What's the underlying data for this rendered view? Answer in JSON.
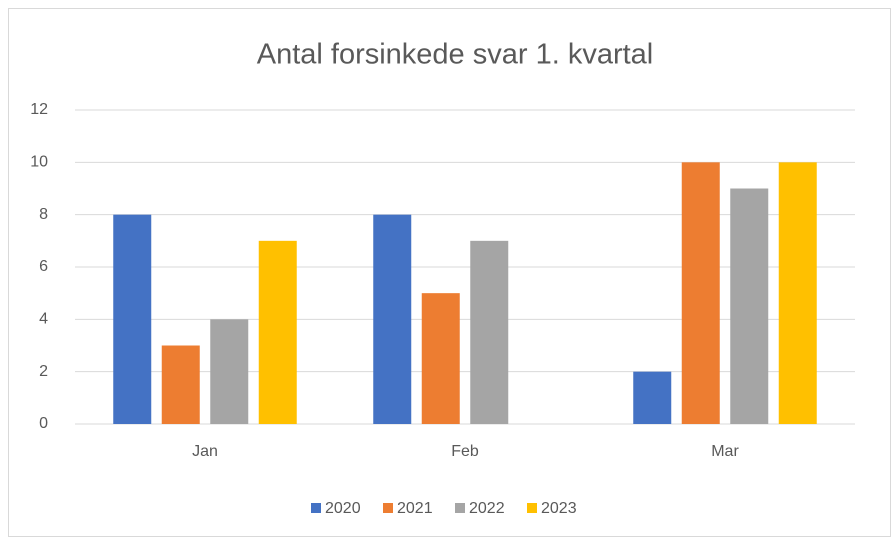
{
  "chart_data": {
    "type": "bar",
    "title": "Antal forsinkede svar 1. kvartal",
    "categories": [
      "Jan",
      "Feb",
      "Mar"
    ],
    "series": [
      {
        "name": "2020",
        "color": "#4472c4",
        "values": [
          8,
          8,
          2
        ]
      },
      {
        "name": "2021",
        "color": "#ed7d31",
        "values": [
          3,
          5,
          10
        ]
      },
      {
        "name": "2022",
        "color": "#a5a5a5",
        "values": [
          4,
          7,
          9
        ]
      },
      {
        "name": "2023",
        "color": "#ffc000",
        "values": [
          7,
          null,
          10
        ]
      }
    ],
    "ylim": [
      0,
      12
    ],
    "yticks": [
      0,
      2,
      4,
      6,
      8,
      10,
      12
    ],
    "grid": true,
    "legend": "bottom"
  }
}
